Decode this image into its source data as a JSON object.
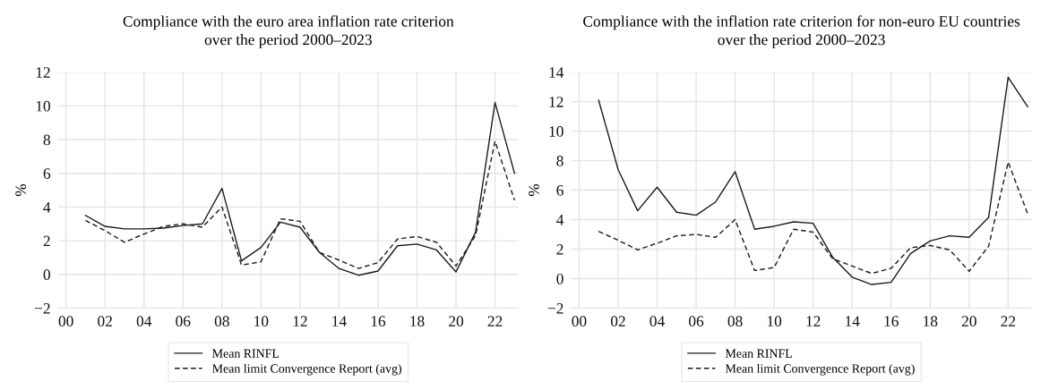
{
  "chart_data": [
    {
      "type": "line",
      "title": "Compliance with the euro area inflation rate criterion\nover the period 2000–2023",
      "ylabel": "%",
      "x": [
        2001,
        2002,
        2003,
        2004,
        2005,
        2006,
        2007,
        2008,
        2009,
        2010,
        2011,
        2012,
        2013,
        2014,
        2015,
        2016,
        2017,
        2018,
        2019,
        2020,
        2021,
        2022,
        2023
      ],
      "series": [
        {
          "name": "Mean RINFL",
          "color": "#1a1a1a",
          "line_style": "solid",
          "values": [
            3.5,
            2.85,
            2.7,
            2.7,
            2.75,
            2.9,
            3.0,
            5.1,
            0.8,
            1.6,
            3.1,
            2.8,
            1.3,
            0.35,
            -0.05,
            0.2,
            1.7,
            1.8,
            1.45,
            0.15,
            2.5,
            10.2,
            6.0
          ]
        },
        {
          "name": "Mean limit Convergence Report (avg)",
          "color": "#1a1a1a",
          "line_style": "dashed",
          "values": [
            3.2,
            2.6,
            1.9,
            2.4,
            2.85,
            3.0,
            2.8,
            4.0,
            0.55,
            0.75,
            3.3,
            3.15,
            1.3,
            0.85,
            0.35,
            0.7,
            2.1,
            2.25,
            1.9,
            0.5,
            2.3,
            7.9,
            4.4
          ]
        }
      ],
      "xlim": [
        1999.6,
        2023.2
      ],
      "xticks": [
        {
          "value": 2000,
          "label": "00"
        },
        {
          "value": 2002,
          "label": "02"
        },
        {
          "value": 2004,
          "label": "04"
        },
        {
          "value": 2006,
          "label": "06"
        },
        {
          "value": 2008,
          "label": "08"
        },
        {
          "value": 2010,
          "label": "10"
        },
        {
          "value": 2012,
          "label": "12"
        },
        {
          "value": 2014,
          "label": "14"
        },
        {
          "value": 2016,
          "label": "16"
        },
        {
          "value": 2018,
          "label": "18"
        },
        {
          "value": 2020,
          "label": "20"
        },
        {
          "value": 2022,
          "label": "22"
        }
      ],
      "ylim": [
        -2,
        12
      ],
      "yticks": [
        {
          "value": -2,
          "label": "−2"
        },
        0,
        2,
        4,
        6,
        8,
        10,
        12
      ],
      "grid": true,
      "legend": "bottom",
      "marker": "none"
    },
    {
      "type": "line",
      "title": "Compliance with the inflation rate criterion for non-euro EU countries\nover the period 2000–2023",
      "ylabel": "%",
      "x": [
        2001,
        2002,
        2003,
        2004,
        2005,
        2006,
        2007,
        2008,
        2009,
        2010,
        2011,
        2012,
        2013,
        2014,
        2015,
        2016,
        2017,
        2018,
        2019,
        2020,
        2021,
        2022,
        2023
      ],
      "series": [
        {
          "name": "Mean RINFL",
          "color": "#1a1a1a",
          "line_style": "solid",
          "values": [
            12.1,
            7.4,
            4.6,
            6.2,
            4.5,
            4.3,
            5.2,
            7.25,
            3.35,
            3.55,
            3.85,
            3.75,
            1.45,
            0.1,
            -0.4,
            -0.25,
            1.7,
            2.55,
            2.9,
            2.8,
            4.15,
            13.65,
            11.65
          ]
        },
        {
          "name": "Mean limit Convergence Report (avg)",
          "color": "#1a1a1a",
          "line_style": "dashed",
          "values": [
            3.2,
            2.6,
            1.95,
            2.4,
            2.9,
            3.0,
            2.8,
            4.0,
            0.55,
            0.75,
            3.35,
            3.15,
            1.35,
            0.85,
            0.35,
            0.7,
            2.1,
            2.25,
            1.95,
            0.5,
            2.2,
            7.9,
            4.4
          ]
        }
      ],
      "xlim": [
        1999.6,
        2023.2
      ],
      "xticks": [
        {
          "value": 2000,
          "label": "00"
        },
        {
          "value": 2002,
          "label": "02"
        },
        {
          "value": 2004,
          "label": "04"
        },
        {
          "value": 2006,
          "label": "06"
        },
        {
          "value": 2008,
          "label": "08"
        },
        {
          "value": 2010,
          "label": "10"
        },
        {
          "value": 2012,
          "label": "12"
        },
        {
          "value": 2014,
          "label": "14"
        },
        {
          "value": 2016,
          "label": "16"
        },
        {
          "value": 2018,
          "label": "18"
        },
        {
          "value": 2020,
          "label": "20"
        },
        {
          "value": 2022,
          "label": "22"
        }
      ],
      "ylim": [
        -2,
        14
      ],
      "yticks": [
        {
          "value": -2,
          "label": "−2"
        },
        0,
        2,
        4,
        6,
        8,
        10,
        12,
        14
      ],
      "grid": true,
      "legend": "bottom",
      "marker": "none"
    }
  ]
}
